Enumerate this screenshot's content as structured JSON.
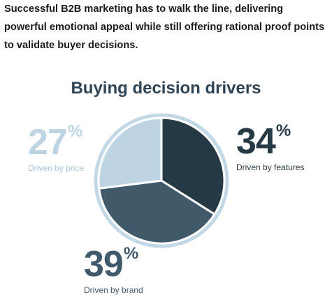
{
  "intro_text": "Successful B2B marketing has to walk the line, delivering powerful emotional appeal while still offering rational proof points to validate buyer decisions.",
  "colors": {
    "price": "#bdd5e3",
    "features": "#263a45",
    "brand": "#40596b",
    "ring": "#c3d8e5",
    "title": "#2f4454"
  },
  "chart_data": {
    "type": "pie",
    "title": "Buying decision drivers",
    "slices": [
      {
        "label": "Driven by features",
        "value": 34,
        "display": "34",
        "unit": "%",
        "color": "#263a45"
      },
      {
        "label": "Driven by brand",
        "value": 39,
        "display": "39",
        "unit": "%",
        "color": "#40596b"
      },
      {
        "label": "Driven by price",
        "value": 27,
        "display": "27",
        "unit": "%",
        "color": "#bdd5e3"
      }
    ]
  }
}
